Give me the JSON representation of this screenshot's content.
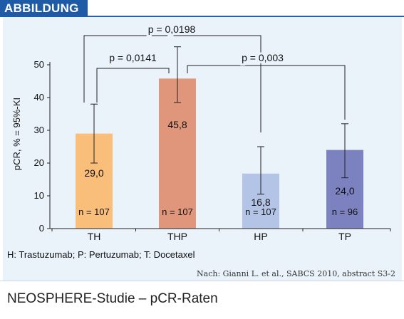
{
  "header": {
    "tag": "ABBILDUNG"
  },
  "chart_data": {
    "type": "bar",
    "categories": [
      "TH",
      "THP",
      "HP",
      "TP"
    ],
    "values": [
      29.0,
      45.8,
      16.8,
      24.0
    ],
    "value_labels": [
      "29,0",
      "45,8",
      "16,8",
      "24,0"
    ],
    "ci_lower": [
      20.0,
      38.5,
      10.5,
      15.5
    ],
    "ci_upper": [
      38.0,
      55.5,
      25.0,
      32.0
    ],
    "n_labels": [
      "n = 107",
      "n = 107",
      "n = 107",
      "n = 96"
    ],
    "bar_colors": [
      "#f8be7a",
      "#e0967a",
      "#b4c4e6",
      "#7c82c0"
    ],
    "ylabel": "pCR, % = 95%-KI",
    "ylim": [
      0,
      50
    ],
    "yticks": [
      0,
      10,
      20,
      30,
      40,
      50
    ],
    "comparisons": [
      {
        "label": "p = 0,0198",
        "from": 0,
        "to": 2
      },
      {
        "label": "p = 0,0141",
        "from": 0,
        "to": 1
      },
      {
        "label": "p = 0,003",
        "from": 1,
        "to": 3
      }
    ]
  },
  "legend_text": "H: Trastuzumab; P: Pertuzumab; T: Docetaxel",
  "source_text": "Nach: Gianni L. et al., SABCS 2010, abstract S3-2",
  "footer": {
    "title": "NEOSPHERE-Studie – pCR-Raten"
  },
  "colors": {
    "accent": "#1f5aa6",
    "panel": "#eaf3fa"
  }
}
